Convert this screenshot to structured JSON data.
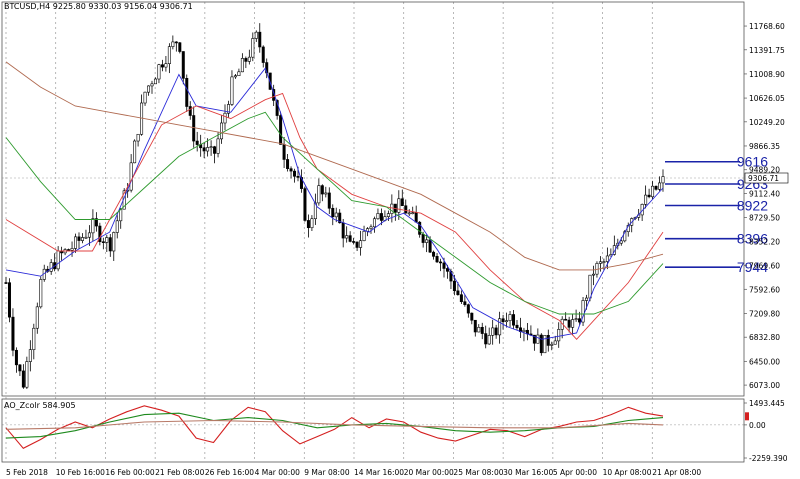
{
  "header": {
    "symbol_line": "BTCUSD,H4  9225.80 9330.03 9156.04 9306.71",
    "indicator_line": "AO_Zcolr 584.905"
  },
  "chart_data": [
    {
      "type": "candlestick",
      "symbol": "BTCUSD",
      "timeframe": "H4",
      "ohlc_header": {
        "open": 9225.8,
        "high": 9330.03,
        "low": 9156.04,
        "close": 9306.71
      },
      "last_price_label": "9306.71",
      "y_ticks": [
        "11768.60",
        "11391.75",
        "11008.90",
        "10626.05",
        "10249.20",
        "9866.35",
        "9489.20",
        "9112.40",
        "8729.50",
        "8352.20",
        "7969.60",
        "7592.60",
        "7209.80",
        "6832.80",
        "6450.00",
        "6073.00"
      ],
      "ylim": [
        5900,
        12150
      ],
      "x_ticks": [
        "5 Feb 2018",
        "10 Feb 16:00",
        "16 Feb 00:00",
        "21 Feb 08:00",
        "26 Feb 16:00",
        "4 Mar 00:00",
        "9 Mar 08:00",
        "14 Mar 16:00",
        "20 Mar 00:00",
        "25 Mar 08:00",
        "30 Mar 16:00",
        "5 Apr 00:00",
        "10 Apr 08:00",
        "21 Apr 08:00"
      ],
      "price_path": [
        [
          0,
          7700
        ],
        [
          1,
          6500
        ],
        [
          2,
          6100
        ],
        [
          4,
          7700
        ],
        [
          6,
          8100
        ],
        [
          8,
          8300
        ],
        [
          10,
          8600
        ],
        [
          12,
          8300
        ],
        [
          14,
          9200
        ],
        [
          16,
          10700
        ],
        [
          18,
          11200
        ],
        [
          20,
          11600
        ],
        [
          21,
          10400
        ],
        [
          22,
          9900
        ],
        [
          24,
          9700
        ],
        [
          25,
          10200
        ],
        [
          26,
          10800
        ],
        [
          28,
          11300
        ],
        [
          29,
          11600
        ],
        [
          30,
          11200
        ],
        [
          32,
          9800
        ],
        [
          34,
          9200
        ],
        [
          35,
          8500
        ],
        [
          36,
          9200
        ],
        [
          38,
          8800
        ],
        [
          40,
          8200
        ],
        [
          42,
          8600
        ],
        [
          44,
          8900
        ],
        [
          46,
          8900
        ],
        [
          48,
          8500
        ],
        [
          50,
          8100
        ],
        [
          52,
          7600
        ],
        [
          54,
          7000
        ],
        [
          56,
          6800
        ],
        [
          58,
          7200
        ],
        [
          60,
          7000
        ],
        [
          62,
          6700
        ],
        [
          63,
          6800
        ],
        [
          65,
          7100
        ],
        [
          66,
          7000
        ],
        [
          68,
          7900
        ],
        [
          70,
          8100
        ],
        [
          72,
          8700
        ],
        [
          74,
          9000
        ],
        [
          76,
          9306
        ]
      ],
      "moving_averages": [
        {
          "color": "#2a2ad8",
          "values": [
            [
              0,
              7900
            ],
            [
              4,
              7800
            ],
            [
              8,
              8200
            ],
            [
              12,
              8500
            ],
            [
              16,
              9800
            ],
            [
              20,
              11000
            ],
            [
              22,
              10500
            ],
            [
              26,
              10400
            ],
            [
              30,
              11100
            ],
            [
              32,
              10300
            ],
            [
              34,
              9400
            ],
            [
              36,
              8900
            ],
            [
              38,
              8700
            ],
            [
              42,
              8500
            ],
            [
              44,
              8700
            ],
            [
              46,
              8800
            ],
            [
              48,
              8600
            ],
            [
              50,
              8200
            ],
            [
              54,
              7300
            ],
            [
              58,
              7000
            ],
            [
              62,
              6800
            ],
            [
              66,
              6900
            ],
            [
              68,
              7600
            ],
            [
              72,
              8600
            ],
            [
              76,
              9200
            ]
          ]
        },
        {
          "color": "#e04040",
          "values": [
            [
              0,
              8700
            ],
            [
              6,
              8200
            ],
            [
              10,
              8200
            ],
            [
              14,
              9200
            ],
            [
              18,
              10200
            ],
            [
              22,
              10500
            ],
            [
              26,
              10300
            ],
            [
              30,
              10600
            ],
            [
              32,
              10700
            ],
            [
              34,
              10000
            ],
            [
              36,
              9500
            ],
            [
              40,
              9100
            ],
            [
              44,
              8900
            ],
            [
              48,
              8800
            ],
            [
              52,
              8500
            ],
            [
              56,
              7900
            ],
            [
              60,
              7400
            ],
            [
              64,
              7100
            ],
            [
              66,
              6800
            ],
            [
              68,
              7100
            ],
            [
              72,
              7700
            ],
            [
              76,
              8500
            ]
          ]
        },
        {
          "color": "#2e9a2e",
          "values": [
            [
              0,
              10000
            ],
            [
              4,
              9300
            ],
            [
              8,
              8700
            ],
            [
              12,
              8700
            ],
            [
              16,
              9200
            ],
            [
              20,
              9700
            ],
            [
              24,
              10000
            ],
            [
              28,
              10300
            ],
            [
              30,
              10400
            ],
            [
              32,
              10000
            ],
            [
              36,
              9500
            ],
            [
              40,
              9000
            ],
            [
              44,
              8900
            ],
            [
              48,
              8500
            ],
            [
              52,
              8100
            ],
            [
              56,
              7700
            ],
            [
              60,
              7400
            ],
            [
              64,
              7200
            ],
            [
              68,
              7200
            ],
            [
              72,
              7400
            ],
            [
              76,
              8000
            ]
          ]
        },
        {
          "color": "#b06a50",
          "values": [
            [
              0,
              11200
            ],
            [
              4,
              10800
            ],
            [
              8,
              10500
            ],
            [
              12,
              10400
            ],
            [
              16,
              10300
            ],
            [
              20,
              10200
            ],
            [
              24,
              10100
            ],
            [
              28,
              10000
            ],
            [
              32,
              9900
            ],
            [
              36,
              9700
            ],
            [
              40,
              9500
            ],
            [
              44,
              9300
            ],
            [
              48,
              9100
            ],
            [
              52,
              8800
            ],
            [
              56,
              8500
            ],
            [
              60,
              8100
            ],
            [
              64,
              7900
            ],
            [
              68,
              7900
            ],
            [
              72,
              8000
            ],
            [
              76,
              8150
            ]
          ]
        }
      ],
      "horizontal_levels": [
        9616,
        9263,
        8922,
        8396,
        7944
      ]
    },
    {
      "type": "line",
      "name": "AO_Zcolr",
      "value_label": "584.905",
      "y_ticks": [
        "1493.445",
        "0.00",
        "-2259.390"
      ],
      "ylim": [
        -2259.39,
        1493.445
      ],
      "series": [
        {
          "color": "#d42020",
          "values": [
            [
              0,
              -200
            ],
            [
              2,
              -1600
            ],
            [
              4,
              -1000
            ],
            [
              6,
              -300
            ],
            [
              8,
              200
            ],
            [
              10,
              -200
            ],
            [
              12,
              400
            ],
            [
              14,
              900
            ],
            [
              16,
              1300
            ],
            [
              18,
              1000
            ],
            [
              20,
              600
            ],
            [
              22,
              -900
            ],
            [
              24,
              -1200
            ],
            [
              26,
              300
            ],
            [
              28,
              1200
            ],
            [
              30,
              900
            ],
            [
              32,
              -400
            ],
            [
              34,
              -1300
            ],
            [
              36,
              -800
            ],
            [
              38,
              -300
            ],
            [
              40,
              500
            ],
            [
              42,
              -200
            ],
            [
              44,
              400
            ],
            [
              46,
              200
            ],
            [
              48,
              -500
            ],
            [
              50,
              -900
            ],
            [
              52,
              -1100
            ],
            [
              54,
              -700
            ],
            [
              56,
              -300
            ],
            [
              58,
              -400
            ],
            [
              60,
              -800
            ],
            [
              62,
              -300
            ],
            [
              64,
              -100
            ],
            [
              66,
              200
            ],
            [
              68,
              300
            ],
            [
              70,
              700
            ],
            [
              72,
              1200
            ],
            [
              74,
              800
            ],
            [
              76,
              600
            ]
          ]
        },
        {
          "color": "#1e8a1e",
          "values": [
            [
              0,
              -900
            ],
            [
              4,
              -800
            ],
            [
              8,
              -400
            ],
            [
              12,
              200
            ],
            [
              16,
              700
            ],
            [
              20,
              800
            ],
            [
              24,
              300
            ],
            [
              28,
              500
            ],
            [
              32,
              300
            ],
            [
              36,
              -200
            ],
            [
              40,
              0
            ],
            [
              44,
              100
            ],
            [
              48,
              -100
            ],
            [
              52,
              -400
            ],
            [
              56,
              -500
            ],
            [
              60,
              -400
            ],
            [
              64,
              -200
            ],
            [
              68,
              -100
            ],
            [
              72,
              300
            ],
            [
              76,
              500
            ]
          ]
        },
        {
          "color": "#b87a68",
          "values": [
            [
              0,
              -300
            ],
            [
              8,
              -200
            ],
            [
              16,
              200
            ],
            [
              24,
              300
            ],
            [
              32,
              200
            ],
            [
              40,
              0
            ],
            [
              48,
              -100
            ],
            [
              56,
              -200
            ],
            [
              64,
              -200
            ],
            [
              72,
              100
            ],
            [
              76,
              0
            ]
          ]
        }
      ]
    }
  ]
}
